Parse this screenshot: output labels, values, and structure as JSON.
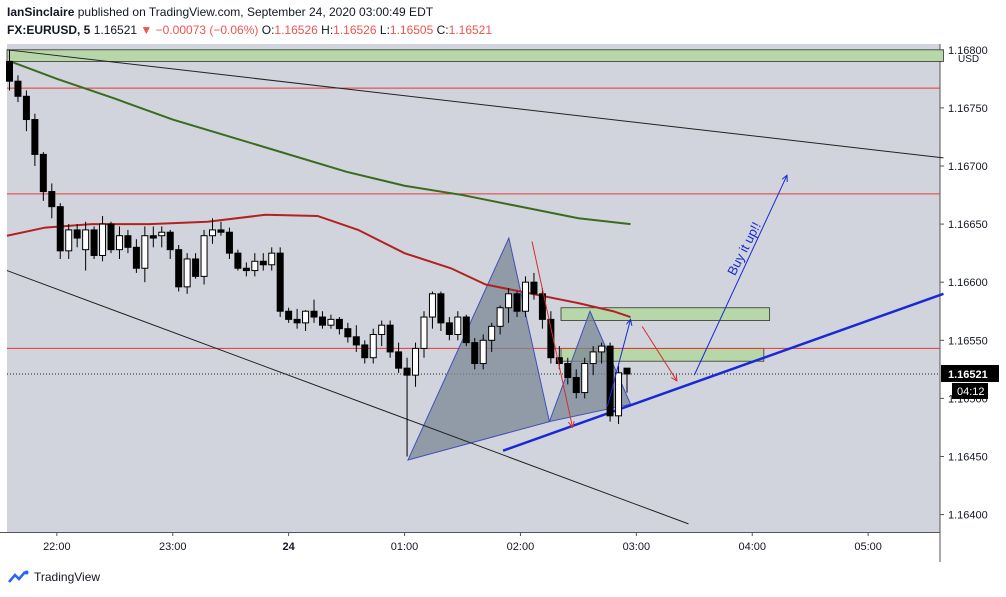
{
  "header": {
    "author": "IanSinclaire",
    "published": "published on TradingView.com, September 24, 2020 03:00:49 EDT",
    "symbol": "FX:EURUSD, 5",
    "last": "1.16521",
    "change": "−0.00073 (−0.06%)",
    "o_label": "O:",
    "o_value": "1.16526",
    "h_label": "H:",
    "h_value": "1.16526",
    "l_label": "L:",
    "l_value": "1.16505",
    "c_label": "C:",
    "c_value": "1.16521"
  },
  "footer": {
    "brand": "TradingView"
  },
  "colors": {
    "background": "#d1d4dc",
    "bull": "#ffffff",
    "bear": "#000000",
    "ma_red": "#b22222",
    "ma_green": "#3b6b1e",
    "harmonic": "#7b8796",
    "blue": "#1a28d6",
    "zone": "#b7d7a8",
    "price_tag": "#000000"
  },
  "chart_data": {
    "type": "candlestick",
    "ylabel": "USD",
    "ylim": [
      1.16385,
      1.16805
    ],
    "xlim": [
      21.57,
      5.62
    ],
    "y_ticks": [
      "1.16800",
      "1.16750",
      "1.16700",
      "1.16650",
      "1.16600",
      "1.16550",
      "1.16521",
      "1.16500",
      "1.16450",
      "1.16400"
    ],
    "x_ticks": [
      {
        "t": 22.0,
        "label": "22:00"
      },
      {
        "t": 23.0,
        "label": "23:00"
      },
      {
        "t": 24.0,
        "label": "24"
      },
      {
        "t": 25.0,
        "label": "01:00"
      },
      {
        "t": 26.0,
        "label": "02:00"
      },
      {
        "t": 27.0,
        "label": "03:00"
      },
      {
        "t": 28.0,
        "label": "04:00"
      },
      {
        "t": 29.0,
        "label": "05:00"
      }
    ],
    "last_price": "1.16521",
    "countdown": "04:12",
    "candles": [
      [
        1.1679,
        1.168,
        1.16765,
        1.16773
      ],
      [
        1.16773,
        1.16778,
        1.16755,
        1.1676
      ],
      [
        1.1676,
        1.16765,
        1.1673,
        1.1674
      ],
      [
        1.1674,
        1.16745,
        1.167,
        1.1671
      ],
      [
        1.1671,
        1.16712,
        1.1667,
        1.16678
      ],
      [
        1.16678,
        1.16685,
        1.16655,
        1.16665
      ],
      [
        1.16665,
        1.16668,
        1.1662,
        1.16627
      ],
      [
        1.16627,
        1.1665,
        1.1662,
        1.16645
      ],
      [
        1.16645,
        1.1665,
        1.1663,
        1.16638
      ],
      [
        1.16628,
        1.16652,
        1.1661,
        1.16645
      ],
      [
        1.16645,
        1.16648,
        1.1662,
        1.16623
      ],
      [
        1.16623,
        1.16657,
        1.16618,
        1.1665
      ],
      [
        1.1665,
        1.16652,
        1.16625,
        1.16628
      ],
      [
        1.16628,
        1.16648,
        1.1662,
        1.1664
      ],
      [
        1.1664,
        1.16645,
        1.16625,
        1.1663
      ],
      [
        1.1663,
        1.16637,
        1.16608,
        1.16612
      ],
      [
        1.16612,
        1.16648,
        1.166,
        1.1664
      ],
      [
        1.1664,
        1.16648,
        1.1663,
        1.16638
      ],
      [
        1.1664,
        1.16648,
        1.1663,
        1.16643
      ],
      [
        1.16643,
        1.16645,
        1.1662,
        1.16628
      ],
      [
        1.16628,
        1.16632,
        1.16592,
        1.16596
      ],
      [
        1.16596,
        1.16625,
        1.1659,
        1.1662
      ],
      [
        1.1662,
        1.16625,
        1.16603,
        1.16605
      ],
      [
        1.16605,
        1.16645,
        1.16598,
        1.1664
      ],
      [
        1.1664,
        1.16655,
        1.16633,
        1.16645
      ],
      [
        1.16645,
        1.16652,
        1.1664,
        1.16643
      ],
      [
        1.16643,
        1.16647,
        1.1662,
        1.16625
      ],
      [
        1.16625,
        1.16628,
        1.1661,
        1.16612
      ],
      [
        1.16612,
        1.16617,
        1.16605,
        1.1661
      ],
      [
        1.1661,
        1.16625,
        1.16605,
        1.16618
      ],
      [
        1.16618,
        1.16625,
        1.1661,
        1.16615
      ],
      [
        1.16615,
        1.1663,
        1.1661,
        1.16625
      ],
      [
        1.16625,
        1.1663,
        1.1657,
        1.16575
      ],
      [
        1.16575,
        1.16578,
        1.16565,
        1.16568
      ],
      [
        1.16568,
        1.16577,
        1.1656,
        1.16565
      ],
      [
        1.16565,
        1.16576,
        1.16558,
        1.16575
      ],
      [
        1.16575,
        1.16585,
        1.16565,
        1.1657
      ],
      [
        1.1657,
        1.16575,
        1.1656,
        1.16563
      ],
      [
        1.16563,
        1.16572,
        1.1656,
        1.16568
      ],
      [
        1.16568,
        1.1657,
        1.16555,
        1.1656
      ],
      [
        1.1656,
        1.16565,
        1.16548,
        1.16553
      ],
      [
        1.16553,
        1.16563,
        1.1654,
        1.16546
      ],
      [
        1.16546,
        1.1655,
        1.1653,
        1.16535
      ],
      [
        1.16535,
        1.1656,
        1.1653,
        1.16555
      ],
      [
        1.16555,
        1.16567,
        1.16545,
        1.16563
      ],
      [
        1.16563,
        1.16567,
        1.16535,
        1.1654
      ],
      [
        1.1654,
        1.16548,
        1.16522,
        1.16526
      ],
      [
        1.16526,
        1.16535,
        1.1645,
        1.1652
      ],
      [
        1.1652,
        1.16548,
        1.1651,
        1.16543
      ],
      [
        1.16543,
        1.16575,
        1.16535,
        1.1657
      ],
      [
        1.1657,
        1.16592,
        1.1656,
        1.1659
      ],
      [
        1.1659,
        1.16592,
        1.16558,
        1.16565
      ],
      [
        1.16565,
        1.1657,
        1.1655,
        1.16555
      ],
      [
        1.16555,
        1.16575,
        1.1655,
        1.1657
      ],
      [
        1.1657,
        1.16572,
        1.16545,
        1.16548
      ],
      [
        1.16548,
        1.16552,
        1.16525,
        1.1653
      ],
      [
        1.1653,
        1.16555,
        1.16525,
        1.1655
      ],
      [
        1.1655,
        1.16565,
        1.1654,
        1.16562
      ],
      [
        1.16562,
        1.1658,
        1.16555,
        1.16578
      ],
      [
        1.16578,
        1.16595,
        1.16565,
        1.1659
      ],
      [
        1.1659,
        1.16592,
        1.1657,
        1.16575
      ],
      [
        1.16575,
        1.16605,
        1.1657,
        1.166
      ],
      [
        1.166,
        1.16608,
        1.16585,
        1.1659
      ],
      [
        1.1659,
        1.16595,
        1.1656,
        1.16568
      ],
      [
        1.16568,
        1.16575,
        1.1653,
        1.16535
      ],
      [
        1.16535,
        1.16545,
        1.16525,
        1.1653
      ],
      [
        1.1653,
        1.16535,
        1.16512,
        1.16518
      ],
      [
        1.16518,
        1.16525,
        1.165,
        1.16505
      ],
      [
        1.16505,
        1.16535,
        1.165,
        1.1653
      ],
      [
        1.1653,
        1.16545,
        1.1652,
        1.1654
      ],
      [
        1.1654,
        1.16548,
        1.1653,
        1.16545
      ],
      [
        1.16545,
        1.16548,
        1.1648,
        1.16485
      ],
      [
        1.16485,
        1.16528,
        1.16478,
        1.16522
      ],
      [
        1.16526,
        1.16526,
        1.16505,
        1.16521
      ]
    ],
    "series": [
      {
        "color": "#b22222",
        "points": [
          [
            21.57,
            1.1664
          ],
          [
            21.9,
            1.16647
          ],
          [
            22.3,
            1.1665
          ],
          [
            22.8,
            1.1665
          ],
          [
            23.3,
            1.16652
          ],
          [
            23.8,
            1.16658
          ],
          [
            24.25,
            1.16657
          ],
          [
            24.6,
            1.16645
          ],
          [
            25.0,
            1.16625
          ],
          [
            25.4,
            1.16612
          ],
          [
            25.7,
            1.16598
          ],
          [
            26.1,
            1.1659
          ],
          [
            26.5,
            1.16582
          ],
          [
            26.8,
            1.16575
          ],
          [
            26.95,
            1.1657
          ]
        ]
      },
      {
        "color": "#3b6b1e",
        "points": [
          [
            21.6,
            1.1679
          ],
          [
            22.0,
            1.16775
          ],
          [
            22.5,
            1.16758
          ],
          [
            23.0,
            1.1674
          ],
          [
            23.5,
            1.16725
          ],
          [
            24.0,
            1.1671
          ],
          [
            24.5,
            1.16695
          ],
          [
            25.0,
            1.16683
          ],
          [
            25.5,
            1.16675
          ],
          [
            26.0,
            1.16665
          ],
          [
            26.5,
            1.16655
          ],
          [
            26.95,
            1.1665
          ]
        ]
      }
    ],
    "horizontal_lines": [
      1.16767,
      1.16676,
      1.16543
    ],
    "trend_lines": [
      [
        [
          21.57,
          1.168
        ],
        [
          29.65,
          1.16707
        ]
      ],
      [
        [
          21.57,
          1.1661
        ],
        [
          27.45,
          1.16392
        ]
      ],
      [
        [
          25.85,
          1.16455
        ],
        [
          29.65,
          1.1659
        ]
      ]
    ],
    "harmonic": {
      "xabcd": [
        [
          25.03,
          1.16447
        ],
        [
          25.9,
          1.16638
        ],
        [
          26.25,
          1.1648
        ],
        [
          26.6,
          1.16575
        ],
        [
          26.95,
          1.16495
        ]
      ],
      "triangles": [
        [
          0,
          1,
          2
        ],
        [
          2,
          3,
          4
        ]
      ]
    },
    "zones": [
      {
        "t1": 21.57,
        "t2": 29.65,
        "y1": 1.168,
        "y2": 1.1679
      },
      {
        "t1": 26.35,
        "t2": 28.15,
        "y1": 1.16578,
        "y2": 1.16567
      },
      {
        "t1": 26.35,
        "t2": 28.1,
        "y1": 1.16543,
        "y2": 1.16532
      }
    ],
    "arrows": [
      {
        "color": "#d32f2f",
        "from": [
          26.1,
          1.16635
        ],
        "to": [
          26.45,
          1.16475
        ]
      },
      {
        "color": "#1a28d6",
        "from": [
          26.75,
          1.16493
        ],
        "to": [
          26.95,
          1.16568
        ]
      },
      {
        "color": "#d32f2f",
        "from": [
          27.05,
          1.16562
        ],
        "to": [
          27.35,
          1.16515
        ]
      },
      {
        "color": "#1a28d6",
        "from": [
          27.5,
          1.1652
        ],
        "to": [
          28.3,
          1.16692
        ]
      }
    ],
    "annotation": {
      "text": "Buy it up!!",
      "t": 27.85,
      "y": 1.16605
    }
  }
}
